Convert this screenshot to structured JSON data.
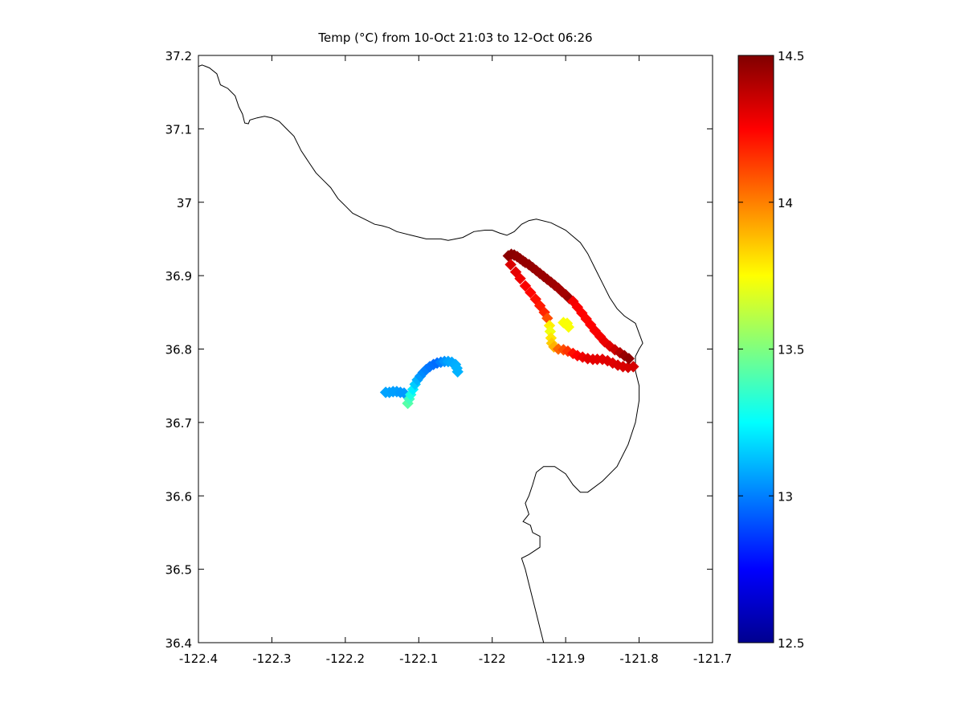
{
  "chart_data": {
    "type": "scatter",
    "title": "Temp (°C) from 10-Oct 21:03 to 12-Oct 06:26",
    "xlabel": "",
    "ylabel": "",
    "xlim": [
      -122.4,
      -121.7
    ],
    "ylim": [
      36.4,
      37.2
    ],
    "xticks": [
      -122.4,
      -122.3,
      -122.2,
      -122.1,
      -122.0,
      -121.9,
      -121.8,
      -121.7
    ],
    "xtick_labels": [
      "-122.4",
      "-122.3",
      "-122.2",
      "-122.1",
      "-122",
      "-121.9",
      "-121.8",
      "-121.7"
    ],
    "yticks": [
      36.4,
      36.5,
      36.6,
      36.7,
      36.8,
      36.9,
      37.0,
      37.1,
      37.2
    ],
    "ytick_labels": [
      "36.4",
      "36.5",
      "36.6",
      "36.7",
      "36.8",
      "36.9",
      "37",
      "37.1",
      "37.2"
    ],
    "grid": false,
    "colorbar": {
      "colormap": "jet",
      "range": [
        12.5,
        14.5
      ],
      "ticks": [
        12.5,
        13.0,
        13.5,
        14.0,
        14.5
      ],
      "tick_labels": [
        "12.5",
        "13",
        "13.5",
        "14",
        "14.5"
      ],
      "placement": "right"
    },
    "coastline": [
      [
        -122.4,
        37.185
      ],
      [
        -122.395,
        37.187
      ],
      [
        -122.385,
        37.183
      ],
      [
        -122.375,
        37.175
      ],
      [
        -122.37,
        37.16
      ],
      [
        -122.36,
        37.155
      ],
      [
        -122.35,
        37.145
      ],
      [
        -122.345,
        37.13
      ],
      [
        -122.34,
        37.12
      ],
      [
        -122.337,
        37.108
      ],
      [
        -122.332,
        37.107
      ],
      [
        -122.33,
        37.112
      ],
      [
        -122.32,
        37.115
      ],
      [
        -122.31,
        37.117
      ],
      [
        -122.3,
        37.115
      ],
      [
        -122.29,
        37.11
      ],
      [
        -122.28,
        37.1
      ],
      [
        -122.27,
        37.09
      ],
      [
        -122.26,
        37.07
      ],
      [
        -122.25,
        37.055
      ],
      [
        -122.24,
        37.04
      ],
      [
        -122.23,
        37.03
      ],
      [
        -122.22,
        37.02
      ],
      [
        -122.21,
        37.005
      ],
      [
        -122.2,
        36.995
      ],
      [
        -122.19,
        36.985
      ],
      [
        -122.17,
        36.975
      ],
      [
        -122.16,
        36.97
      ],
      [
        -122.15,
        36.968
      ],
      [
        -122.14,
        36.965
      ],
      [
        -122.13,
        36.96
      ],
      [
        -122.11,
        36.955
      ],
      [
        -122.09,
        36.95
      ],
      [
        -122.07,
        36.95
      ],
      [
        -122.06,
        36.948
      ],
      [
        -122.04,
        36.952
      ],
      [
        -122.025,
        36.96
      ],
      [
        -122.01,
        36.962
      ],
      [
        -122.0,
        36.962
      ],
      [
        -121.99,
        36.958
      ],
      [
        -121.98,
        36.955
      ],
      [
        -121.97,
        36.96
      ],
      [
        -121.96,
        36.97
      ],
      [
        -121.95,
        36.975
      ],
      [
        -121.94,
        36.977
      ],
      [
        -121.92,
        36.972
      ],
      [
        -121.9,
        36.962
      ],
      [
        -121.88,
        36.945
      ],
      [
        -121.87,
        36.93
      ],
      [
        -121.86,
        36.91
      ],
      [
        -121.85,
        36.89
      ],
      [
        -121.84,
        36.87
      ],
      [
        -121.83,
        36.855
      ],
      [
        -121.82,
        36.845
      ],
      [
        -121.805,
        36.835
      ],
      [
        -121.795,
        36.808
      ],
      [
        -121.8,
        36.8
      ],
      [
        -121.805,
        36.79
      ],
      [
        -121.805,
        36.77
      ],
      [
        -121.8,
        36.75
      ],
      [
        -121.8,
        36.73
      ],
      [
        -121.805,
        36.7
      ],
      [
        -121.815,
        36.67
      ],
      [
        -121.83,
        36.64
      ],
      [
        -121.85,
        36.62
      ],
      [
        -121.87,
        36.605
      ],
      [
        -121.88,
        36.605
      ],
      [
        -121.89,
        36.615
      ],
      [
        -121.9,
        36.63
      ],
      [
        -121.915,
        36.64
      ],
      [
        -121.93,
        36.64
      ],
      [
        -121.94,
        36.632
      ],
      [
        -121.945,
        36.615
      ],
      [
        -121.95,
        36.6
      ],
      [
        -121.955,
        36.59
      ],
      [
        -121.95,
        36.575
      ],
      [
        -121.958,
        36.565
      ],
      [
        -121.948,
        36.56
      ],
      [
        -121.945,
        36.55
      ],
      [
        -121.935,
        36.545
      ],
      [
        -121.935,
        36.53
      ],
      [
        -121.95,
        36.52
      ],
      [
        -121.96,
        36.515
      ],
      [
        -121.955,
        36.5
      ],
      [
        -121.95,
        36.48
      ],
      [
        -121.945,
        36.46
      ],
      [
        -121.94,
        36.44
      ],
      [
        -121.935,
        36.42
      ],
      [
        -121.93,
        36.4
      ]
    ],
    "points": [
      [
        -122.145,
        36.741,
        13.07
      ],
      [
        -122.14,
        36.741,
        13.07
      ],
      [
        -122.135,
        36.742,
        13.06
      ],
      [
        -122.13,
        36.742,
        13.06
      ],
      [
        -122.125,
        36.741,
        13.05
      ],
      [
        -122.12,
        36.74,
        13.05
      ],
      [
        -122.115,
        36.726,
        13.42
      ],
      [
        -122.113,
        36.732,
        13.38
      ],
      [
        -122.111,
        36.738,
        13.3
      ],
      [
        -122.108,
        36.745,
        13.22
      ],
      [
        -122.105,
        36.752,
        13.15
      ],
      [
        -122.102,
        36.758,
        13.1
      ],
      [
        -122.098,
        36.763,
        13.05
      ],
      [
        -122.094,
        36.768,
        13.02
      ],
      [
        -122.09,
        36.772,
        13.0
      ],
      [
        -122.085,
        36.776,
        12.98
      ],
      [
        -122.08,
        36.779,
        12.97
      ],
      [
        -122.075,
        36.781,
        12.96
      ],
      [
        -122.07,
        36.782,
        13.0
      ],
      [
        -122.065,
        36.783,
        13.04
      ],
      [
        -122.06,
        36.783,
        13.07
      ],
      [
        -122.055,
        36.782,
        13.08
      ],
      [
        -122.05,
        36.779,
        13.09
      ],
      [
        -122.048,
        36.774,
        13.1
      ],
      [
        -122.047,
        36.769,
        13.1
      ],
      [
        -121.978,
        36.927,
        14.48
      ],
      [
        -121.974,
        36.929,
        14.48
      ],
      [
        -121.97,
        36.928,
        14.48
      ],
      [
        -121.966,
        36.926,
        14.47
      ],
      [
        -121.962,
        36.923,
        14.47
      ],
      [
        -121.958,
        36.92,
        14.46
      ],
      [
        -121.955,
        36.918,
        14.46
      ],
      [
        -121.95,
        36.915,
        14.46
      ],
      [
        -121.945,
        36.911,
        14.46
      ],
      [
        -121.94,
        36.907,
        14.45
      ],
      [
        -121.935,
        36.903,
        14.45
      ],
      [
        -121.93,
        36.899,
        14.45
      ],
      [
        -121.925,
        36.895,
        14.45
      ],
      [
        -121.92,
        36.891,
        14.44
      ],
      [
        -121.915,
        36.887,
        14.44
      ],
      [
        -121.91,
        36.883,
        14.43
      ],
      [
        -121.905,
        36.878,
        14.43
      ],
      [
        -121.9,
        36.874,
        14.43
      ],
      [
        -121.895,
        36.869,
        14.45
      ],
      [
        -121.975,
        36.915,
        14.32
      ],
      [
        -121.968,
        36.905,
        14.3
      ],
      [
        -121.962,
        36.896,
        14.28
      ],
      [
        -121.955,
        36.886,
        14.26
      ],
      [
        -121.948,
        36.877,
        14.24
      ],
      [
        -121.941,
        36.868,
        14.22
      ],
      [
        -121.935,
        36.859,
        14.2
      ],
      [
        -121.929,
        36.85,
        14.18
      ],
      [
        -121.925,
        36.842,
        14.1
      ],
      [
        -121.922,
        36.832,
        13.78
      ],
      [
        -121.921,
        36.824,
        13.72
      ],
      [
        -121.92,
        36.815,
        13.8
      ],
      [
        -121.919,
        36.808,
        13.85
      ],
      [
        -121.916,
        36.803,
        13.9
      ],
      [
        -121.91,
        36.8,
        14.05
      ],
      [
        -121.903,
        36.799,
        14.1
      ],
      [
        -121.897,
        36.797,
        14.15
      ],
      [
        -121.89,
        36.794,
        14.22
      ],
      [
        -121.884,
        36.791,
        14.25
      ],
      [
        -121.877,
        36.789,
        14.28
      ],
      [
        -121.87,
        36.787,
        14.3
      ],
      [
        -121.863,
        36.786,
        14.3
      ],
      [
        -121.857,
        36.786,
        14.3
      ],
      [
        -121.85,
        36.786,
        14.3
      ],
      [
        -121.843,
        36.784,
        14.31
      ],
      [
        -121.836,
        36.781,
        14.31
      ],
      [
        -121.829,
        36.778,
        14.32
      ],
      [
        -121.822,
        36.776,
        14.32
      ],
      [
        -121.815,
        36.775,
        14.33
      ],
      [
        -121.808,
        36.776,
        14.33
      ],
      [
        -121.903,
        36.836,
        13.74
      ],
      [
        -121.898,
        36.835,
        13.74
      ],
      [
        -121.896,
        36.83,
        13.74
      ],
      [
        -121.89,
        36.865,
        14.27
      ],
      [
        -121.884,
        36.857,
        14.26
      ],
      [
        -121.878,
        36.849,
        14.25
      ],
      [
        -121.872,
        36.841,
        14.24
      ],
      [
        -121.866,
        36.833,
        14.25
      ],
      [
        -121.86,
        36.825,
        14.26
      ],
      [
        -121.853,
        36.817,
        14.27
      ],
      [
        -121.847,
        36.81,
        14.29
      ],
      [
        -121.84,
        36.804,
        14.31
      ],
      [
        -121.833,
        36.799,
        14.35
      ],
      [
        -121.826,
        36.795,
        14.4
      ],
      [
        -121.82,
        36.791,
        14.45
      ],
      [
        -121.814,
        36.787,
        14.47
      ]
    ]
  }
}
